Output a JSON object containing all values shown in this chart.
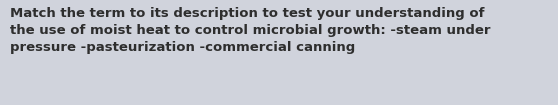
{
  "line1": "Match the term to its description to test your understanding of",
  "line2": "the use of moist heat to control microbial growth: -steam under",
  "line3": "pressure -pasteurization -commercial canning",
  "background_color": "#d0d3dc",
  "text_color": "#2e2e2e",
  "font_size": 9.5,
  "font_weight": "semibold",
  "font_family": "DejaVu Sans",
  "fig_width": 5.58,
  "fig_height": 1.05,
  "dpi": 100
}
